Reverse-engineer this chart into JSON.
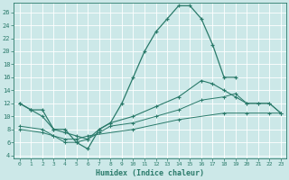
{
  "xlabel": "Humidex (Indice chaleur)",
  "background_color": "#cce8e8",
  "grid_color": "#b8d8d8",
  "line_color": "#2a7a6a",
  "xlim": [
    -0.5,
    23.5
  ],
  "ylim": [
    3.5,
    27.5
  ],
  "xticks": [
    0,
    1,
    2,
    3,
    4,
    5,
    6,
    7,
    8,
    9,
    10,
    11,
    12,
    13,
    14,
    15,
    16,
    17,
    18,
    19,
    20,
    21,
    22,
    23
  ],
  "yticks": [
    4,
    6,
    8,
    10,
    12,
    14,
    16,
    18,
    20,
    22,
    24,
    26
  ],
  "line1_x": [
    0,
    1,
    2,
    3,
    4,
    5,
    6,
    7,
    8,
    9,
    10,
    11,
    12,
    13,
    14,
    15,
    16,
    17,
    18,
    19
  ],
  "line1_y": [
    12,
    11,
    11,
    8,
    8,
    6,
    5,
    8,
    9,
    12,
    16,
    20,
    23,
    25,
    27,
    27,
    25,
    21,
    16,
    16
  ],
  "line2_x": [
    0,
    1,
    2,
    3,
    4,
    5,
    6,
    7,
    8,
    10,
    12,
    14,
    16,
    17,
    18,
    19,
    20,
    21,
    22,
    23
  ],
  "line2_y": [
    12,
    11,
    10,
    8,
    7.5,
    7,
    6.5,
    8,
    9,
    10,
    11.5,
    13,
    15.5,
    15,
    14,
    13,
    12,
    12,
    12,
    10.5
  ],
  "line3_x": [
    0,
    2,
    3,
    4,
    5,
    6,
    7,
    8,
    10,
    12,
    14,
    16,
    18,
    19,
    20,
    21,
    22,
    23
  ],
  "line3_y": [
    8.5,
    8,
    7,
    6,
    6,
    6.5,
    7.5,
    8.5,
    9,
    10,
    11,
    12.5,
    13,
    13.5,
    12,
    12,
    12,
    10.5
  ],
  "line4_x": [
    0,
    2,
    3,
    4,
    5,
    6,
    10,
    14,
    18,
    20,
    22,
    23
  ],
  "line4_y": [
    8,
    7.5,
    7,
    6.5,
    6.5,
    7,
    8,
    9.5,
    10.5,
    10.5,
    10.5,
    10.5
  ]
}
